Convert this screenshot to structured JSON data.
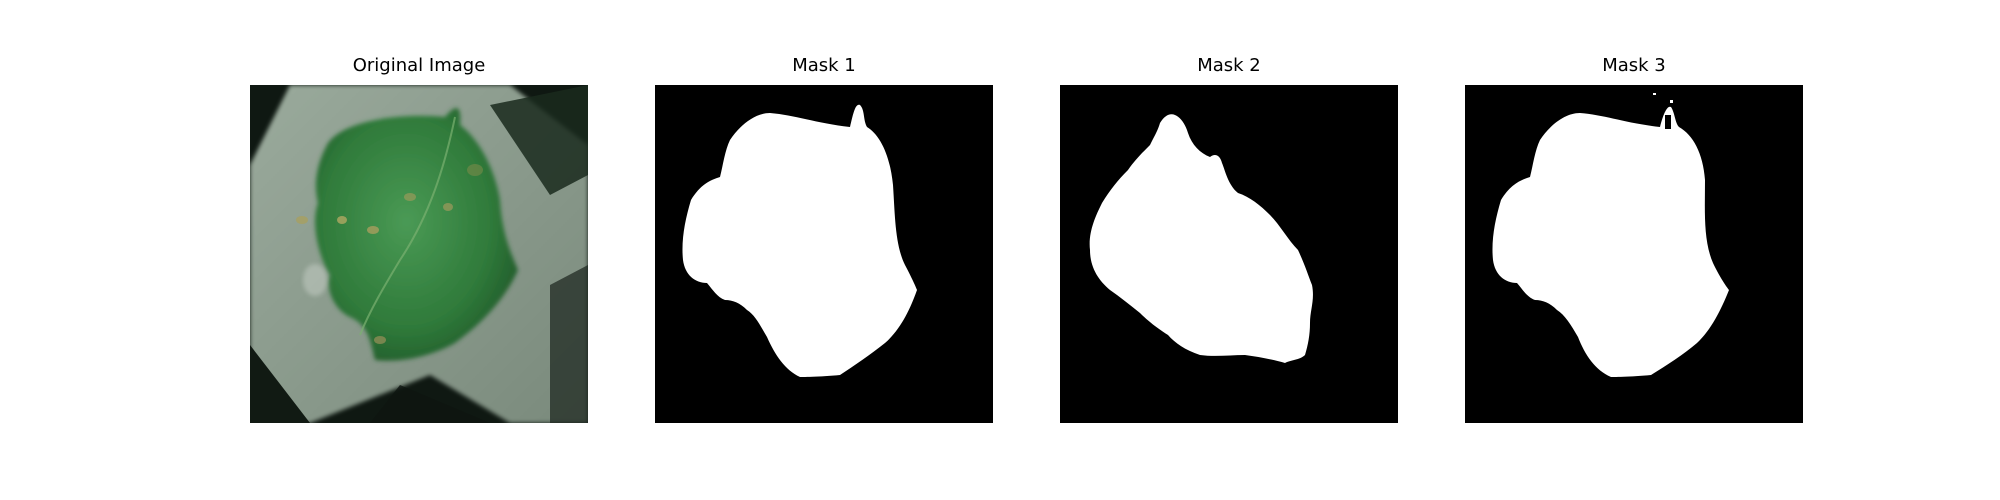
{
  "panels": [
    {
      "title": "Original Image",
      "kind": "photo"
    },
    {
      "title": "Mask 1",
      "kind": "mask"
    },
    {
      "title": "Mask 2",
      "kind": "mask"
    },
    {
      "title": "Mask 3",
      "kind": "mask"
    }
  ],
  "colors": {
    "background": "#ffffff",
    "mask_background": "#000000",
    "mask_foreground": "#ffffff",
    "leaf": "#3d8a47",
    "leaf_dark": "#2a6a33",
    "paper": "#8a9a8c",
    "photo_background": "#121a14"
  }
}
